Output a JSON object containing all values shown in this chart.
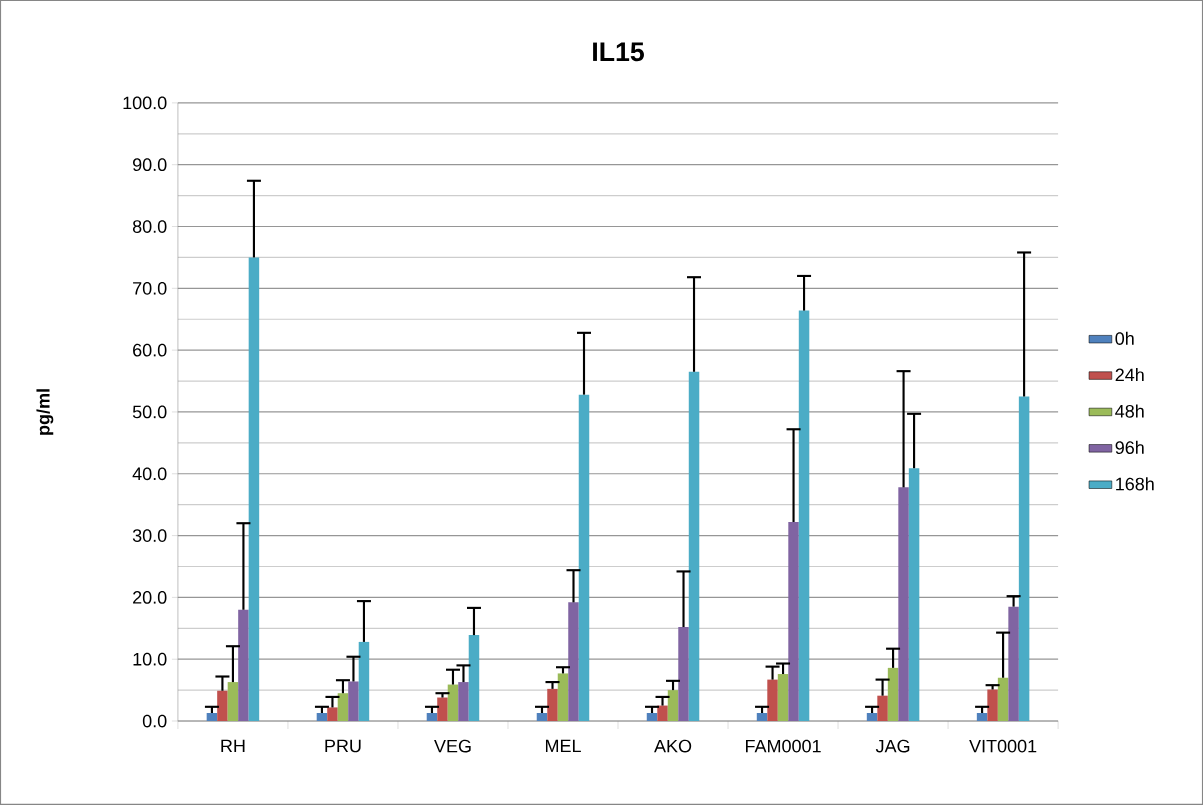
{
  "chart_data": {
    "type": "bar",
    "title": "IL15",
    "ylabel": "pg/ml",
    "categories": [
      "RH",
      "PRU",
      "VEG",
      "MEL",
      "AKO",
      "FAM0001",
      "JAG",
      "VIT0001"
    ],
    "ylim": [
      0,
      100
    ],
    "yticks": [
      {
        "value": 0,
        "label": "0.0"
      },
      {
        "value": 5,
        "label": null
      },
      {
        "value": 10,
        "label": "10.0"
      },
      {
        "value": 15,
        "label": null
      },
      {
        "value": 20,
        "label": "20.0"
      },
      {
        "value": 25,
        "label": null
      },
      {
        "value": 30,
        "label": "30.0"
      },
      {
        "value": 35,
        "label": null
      },
      {
        "value": 40,
        "label": "40.0"
      },
      {
        "value": 45,
        "label": null
      },
      {
        "value": 50,
        "label": "50.0"
      },
      {
        "value": 55,
        "label": null
      },
      {
        "value": 60,
        "label": "60.0"
      },
      {
        "value": 65,
        "label": null
      },
      {
        "value": 70,
        "label": "70.0"
      },
      {
        "value": 75,
        "label": null
      },
      {
        "value": 80,
        "label": "80.0"
      },
      {
        "value": 85,
        "label": null
      },
      {
        "value": 90,
        "label": "90.0"
      },
      {
        "value": 95,
        "label": null
      },
      {
        "value": 100,
        "label": "100.0"
      }
    ],
    "grid": "y",
    "legend": "right",
    "series": [
      {
        "name": "0h",
        "color": "#4f81bd",
        "values": [
          1.3,
          1.3,
          1.3,
          1.3,
          1.3,
          1.3,
          1.3,
          1.3
        ],
        "errors": [
          [
            1.3,
            2.3
          ],
          [
            1.3,
            2.3
          ],
          [
            1.3,
            2.3
          ],
          [
            1.3,
            2.3
          ],
          [
            1.3,
            2.3
          ],
          [
            1.3,
            2.3
          ],
          [
            1.3,
            2.3
          ],
          [
            1.3,
            2.3
          ]
        ]
      },
      {
        "name": "24h",
        "color": "#c0504d",
        "values": [
          4.9,
          2.2,
          3.8,
          5.2,
          2.5,
          6.7,
          4.1,
          5.1
        ],
        "errors": [
          [
            4.9,
            7.2
          ],
          [
            2.2,
            3.9
          ],
          [
            3.8,
            4.5
          ],
          [
            5.2,
            6.3
          ],
          [
            2.5,
            3.9
          ],
          [
            6.7,
            8.8
          ],
          [
            4.1,
            6.7
          ],
          [
            5.1,
            5.8
          ]
        ]
      },
      {
        "name": "48h",
        "color": "#9bbb59",
        "values": [
          6.3,
          4.5,
          5.9,
          7.7,
          5.0,
          7.6,
          8.6,
          7.0
        ],
        "errors": [
          [
            6.3,
            12.1
          ],
          [
            4.5,
            6.6
          ],
          [
            5.9,
            8.3
          ],
          [
            7.7,
            8.7
          ],
          [
            5.0,
            6.5
          ],
          [
            7.6,
            9.3
          ],
          [
            8.6,
            11.7
          ],
          [
            7.0,
            14.3
          ]
        ]
      },
      {
        "name": "96h",
        "color": "#8064a2",
        "values": [
          18.0,
          6.4,
          6.3,
          19.2,
          15.2,
          32.2,
          37.8,
          18.5
        ],
        "errors": [
          [
            18.0,
            32.0
          ],
          [
            6.4,
            10.4
          ],
          [
            6.3,
            9.0
          ],
          [
            19.2,
            24.4
          ],
          [
            15.2,
            24.2
          ],
          [
            32.2,
            47.2
          ],
          [
            37.8,
            56.6
          ],
          [
            18.5,
            20.2
          ]
        ]
      },
      {
        "name": "168h",
        "color": "#4bacc6",
        "values": [
          75.0,
          12.8,
          13.9,
          52.8,
          56.5,
          66.4,
          40.9,
          52.5
        ],
        "errors": [
          [
            75.0,
            87.4
          ],
          [
            12.8,
            19.4
          ],
          [
            13.9,
            18.3
          ],
          [
            52.8,
            62.8
          ],
          [
            56.5,
            71.8
          ],
          [
            66.4,
            72.0
          ],
          [
            40.9,
            49.7
          ],
          [
            52.5,
            75.8
          ]
        ]
      }
    ]
  }
}
